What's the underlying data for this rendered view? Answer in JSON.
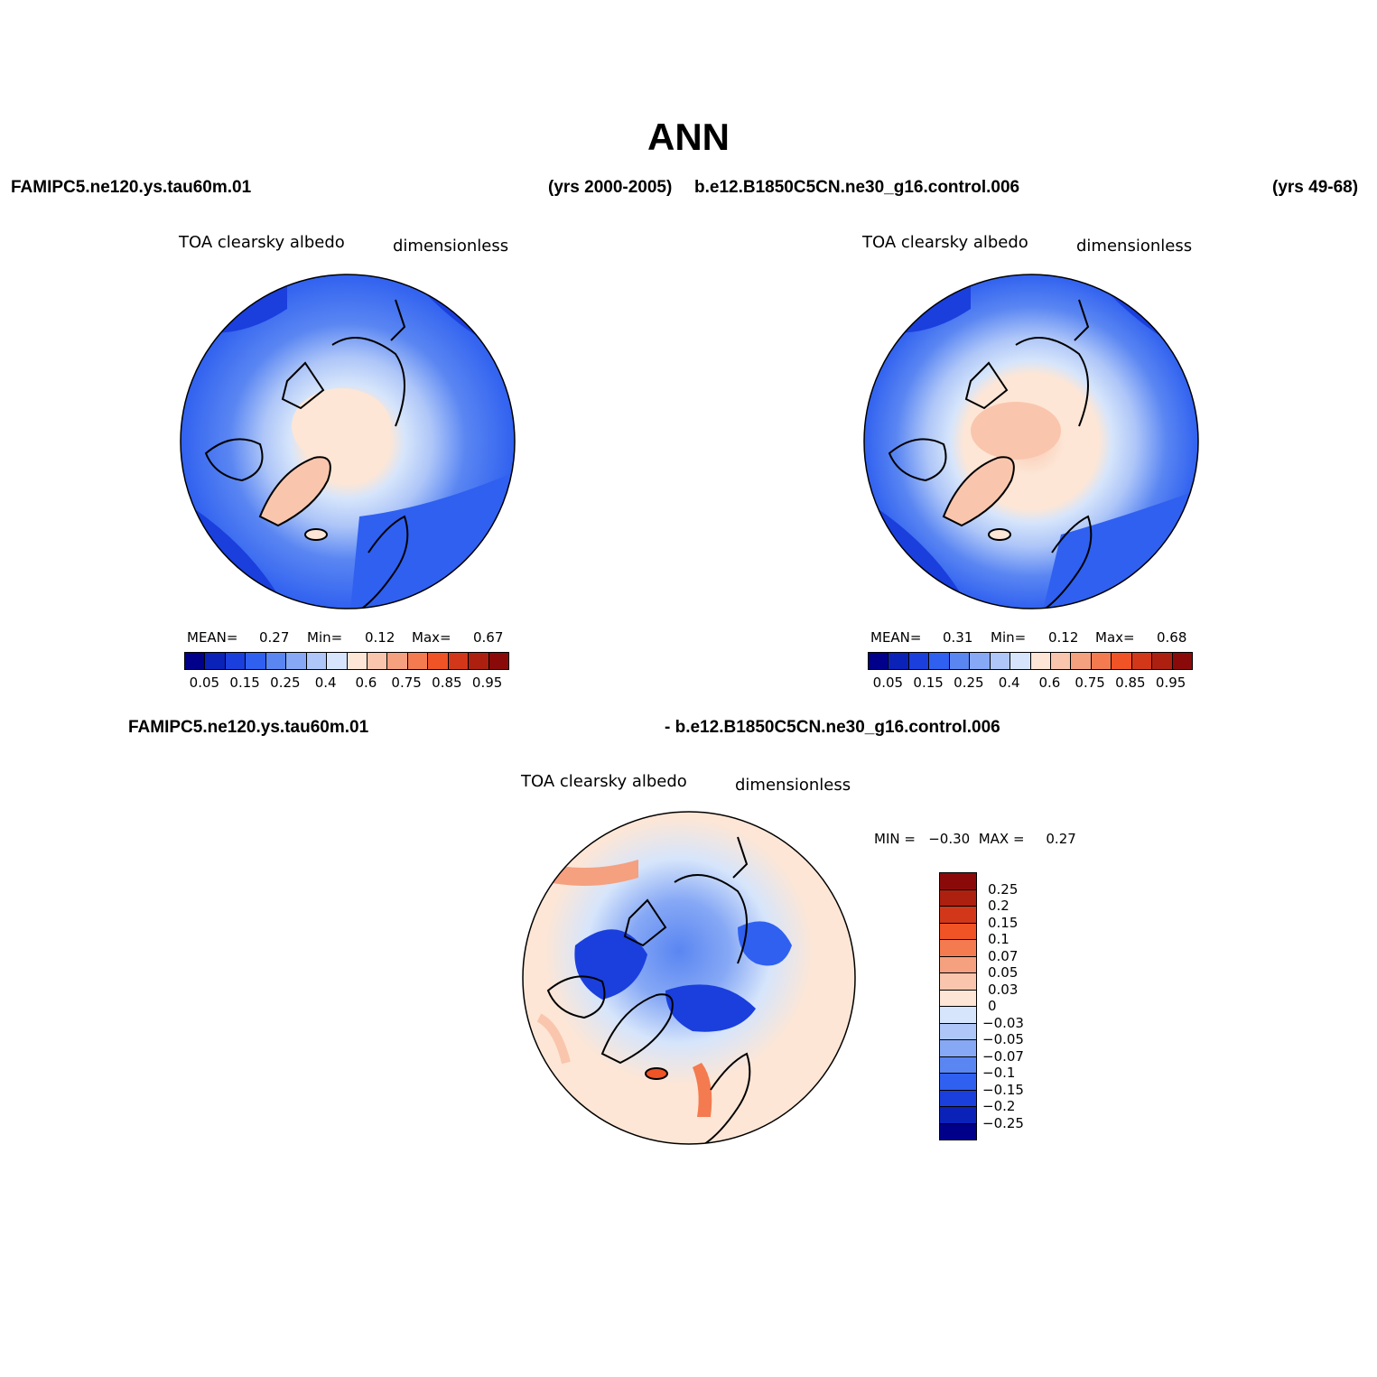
{
  "title": "ANN",
  "header": {
    "case1": "FAMIPC5.ne120.ys.tau60m.01",
    "case1_years": "(yrs 2000-2005)",
    "case2": "b.e12.B1850C5CN.ne30_g16.control.006",
    "case2_years": "(yrs 49-68)"
  },
  "diff_header": {
    "left": "FAMIPC5.ne120.ys.tau60m.01",
    "right": "- b.e12.B1850C5CN.ne30_g16.control.006"
  },
  "panels": {
    "p1": {
      "variable": "TOA clearsky albedo",
      "units": "dimensionless",
      "mean_label": "MEAN=",
      "mean": "0.27",
      "min_label": "Min=",
      "min": "0.12",
      "max_label": "Max=",
      "max": "0.67"
    },
    "p2": {
      "variable": "TOA clearsky albedo",
      "units": "dimensionless",
      "mean_label": "MEAN=",
      "mean": "0.31",
      "min_label": "Min=",
      "min": "0.12",
      "max_label": "Max=",
      "max": "0.68"
    },
    "p3": {
      "variable": "TOA clearsky albedo",
      "units": "dimensionless",
      "minmax": "MIN =   −0.30  MAX =     0.27"
    }
  },
  "colorbar_abs": {
    "colors": [
      "#00008b",
      "#0a22b8",
      "#1a3fdd",
      "#2f60f0",
      "#5a86f2",
      "#86a8f5",
      "#aec6f8",
      "#d6e5fb",
      "#fde6d6",
      "#f9c6ad",
      "#f5a07f",
      "#f47a50",
      "#ef5326",
      "#d3371a",
      "#ad2010",
      "#8a0a0a"
    ],
    "labels": [
      "0.05",
      "0.15",
      "0.25",
      "0.4",
      "0.6",
      "0.75",
      "0.85",
      "0.95"
    ]
  },
  "colorbar_diff": {
    "colors": [
      "#8a0a0a",
      "#ad2010",
      "#d3371a",
      "#ef5326",
      "#f47a50",
      "#f5a07f",
      "#f9c6ad",
      "#fde6d6",
      "#d6e5fb",
      "#aec6f8",
      "#86a8f5",
      "#5a86f2",
      "#2f60f0",
      "#1a3fdd",
      "#0a22b8",
      "#00008b"
    ],
    "labels": [
      "0.25",
      "0.2",
      "0.15",
      "0.1",
      "0.07",
      "0.05",
      "0.03",
      "0",
      "−0.03",
      "−0.05",
      "−0.07",
      "−0.1",
      "−0.15",
      "−0.2",
      "−0.25"
    ]
  }
}
